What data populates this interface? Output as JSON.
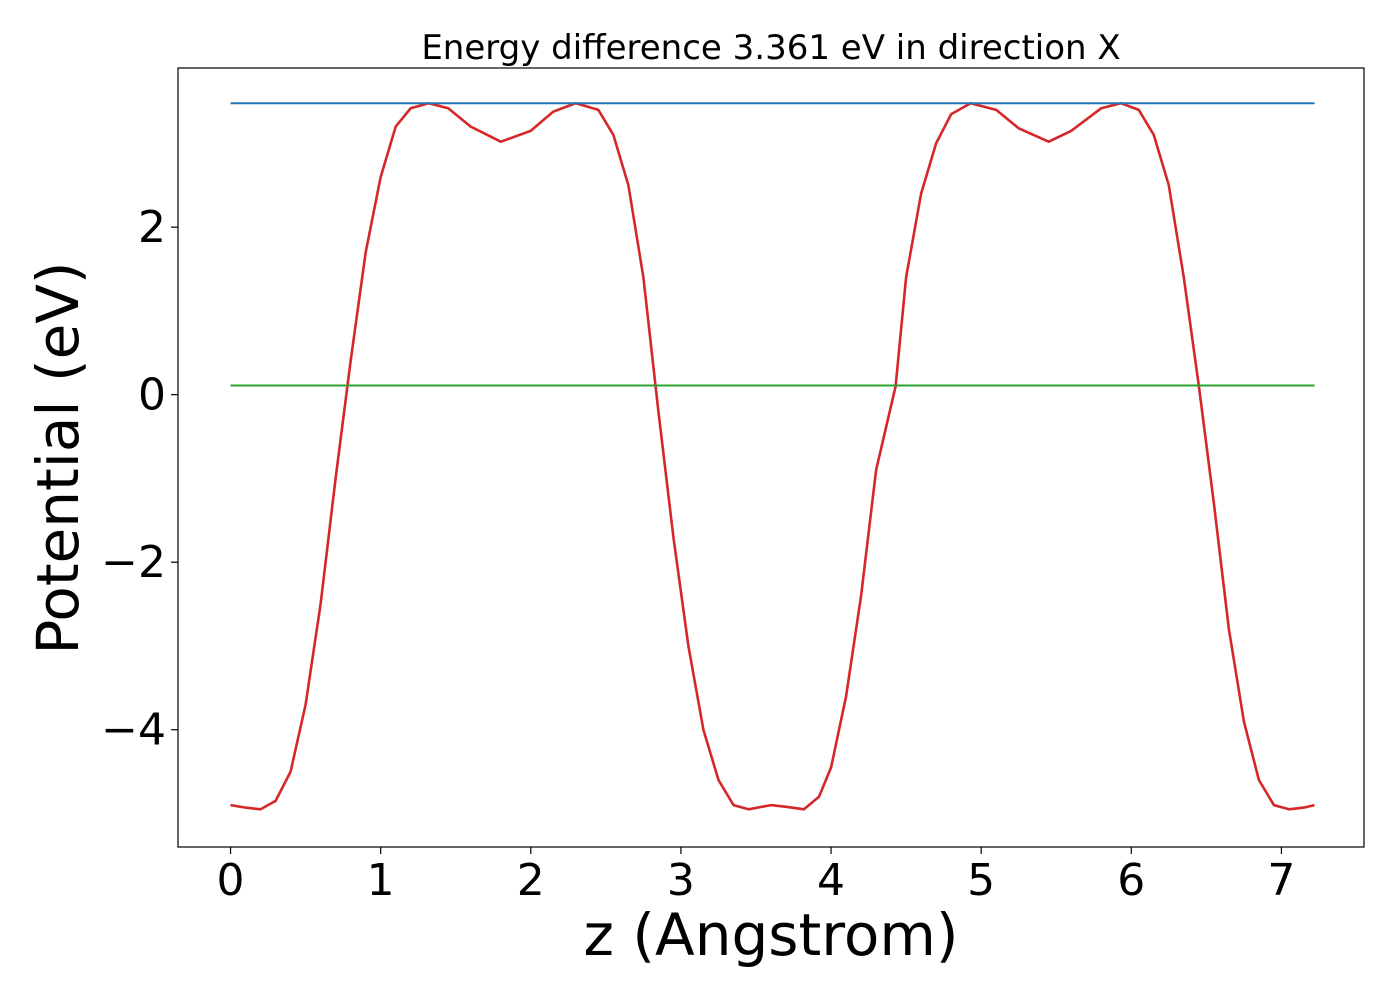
{
  "chart_data": {
    "type": "line",
    "title": "Energy difference 3.361 eV in direction X",
    "xlabel": "z (Angstrom)",
    "ylabel": "Potential (eV)",
    "xlim": [
      -0.35,
      7.55
    ],
    "ylim": [
      -5.4,
      3.9
    ],
    "xticks": [
      0,
      1,
      2,
      3,
      4,
      5,
      6,
      7
    ],
    "yticks": [
      -4,
      -2,
      0,
      2
    ],
    "ytick_labels": [
      "−4",
      "−2",
      "0",
      "2"
    ],
    "grid": false,
    "series": [
      {
        "color": "#d62728",
        "points": [
          [
            0.0,
            -4.9
          ],
          [
            0.1,
            -4.93
          ],
          [
            0.2,
            -4.95
          ],
          [
            0.3,
            -4.85
          ],
          [
            0.4,
            -4.5
          ],
          [
            0.5,
            -3.7
          ],
          [
            0.6,
            -2.5
          ],
          [
            0.7,
            -1.0
          ],
          [
            0.8,
            0.4
          ],
          [
            0.9,
            1.7
          ],
          [
            1.0,
            2.6
          ],
          [
            1.1,
            3.2
          ],
          [
            1.2,
            3.42
          ],
          [
            1.32,
            3.48
          ],
          [
            1.45,
            3.42
          ],
          [
            1.6,
            3.2
          ],
          [
            1.8,
            3.02
          ],
          [
            2.0,
            3.15
          ],
          [
            2.15,
            3.38
          ],
          [
            2.3,
            3.48
          ],
          [
            2.45,
            3.4
          ],
          [
            2.55,
            3.1
          ],
          [
            2.65,
            2.5
          ],
          [
            2.75,
            1.4
          ],
          [
            2.85,
            -0.2
          ],
          [
            2.95,
            -1.7
          ],
          [
            3.05,
            -3.0
          ],
          [
            3.15,
            -4.0
          ],
          [
            3.25,
            -4.6
          ],
          [
            3.35,
            -4.9
          ],
          [
            3.45,
            -4.95
          ],
          [
            3.6,
            -4.9
          ],
          [
            3.7,
            -4.92
          ],
          [
            3.82,
            -4.95
          ],
          [
            3.92,
            -4.8
          ],
          [
            4.0,
            -4.45
          ],
          [
            4.1,
            -3.6
          ],
          [
            4.2,
            -2.4
          ],
          [
            4.3,
            -0.9
          ],
          [
            4.43,
            0.1
          ],
          [
            4.5,
            1.4
          ],
          [
            4.6,
            2.4
          ],
          [
            4.7,
            3.0
          ],
          [
            4.8,
            3.35
          ],
          [
            4.93,
            3.48
          ],
          [
            5.1,
            3.4
          ],
          [
            5.25,
            3.18
          ],
          [
            5.45,
            3.02
          ],
          [
            5.6,
            3.15
          ],
          [
            5.8,
            3.42
          ],
          [
            5.93,
            3.48
          ],
          [
            6.05,
            3.4
          ],
          [
            6.15,
            3.1
          ],
          [
            6.25,
            2.5
          ],
          [
            6.35,
            1.4
          ],
          [
            6.45,
            0.1
          ],
          [
            6.55,
            -1.3
          ],
          [
            6.65,
            -2.8
          ],
          [
            6.75,
            -3.9
          ],
          [
            6.85,
            -4.6
          ],
          [
            6.95,
            -4.9
          ],
          [
            7.05,
            -4.95
          ],
          [
            7.15,
            -4.93
          ],
          [
            7.22,
            -4.9
          ]
        ]
      },
      {
        "color": "#1f77b4",
        "points": [
          [
            0.0,
            3.48
          ],
          [
            7.22,
            3.48
          ]
        ]
      },
      {
        "color": "#2ca02c",
        "points": [
          [
            0.0,
            0.11
          ],
          [
            7.22,
            0.11
          ]
        ]
      }
    ]
  }
}
